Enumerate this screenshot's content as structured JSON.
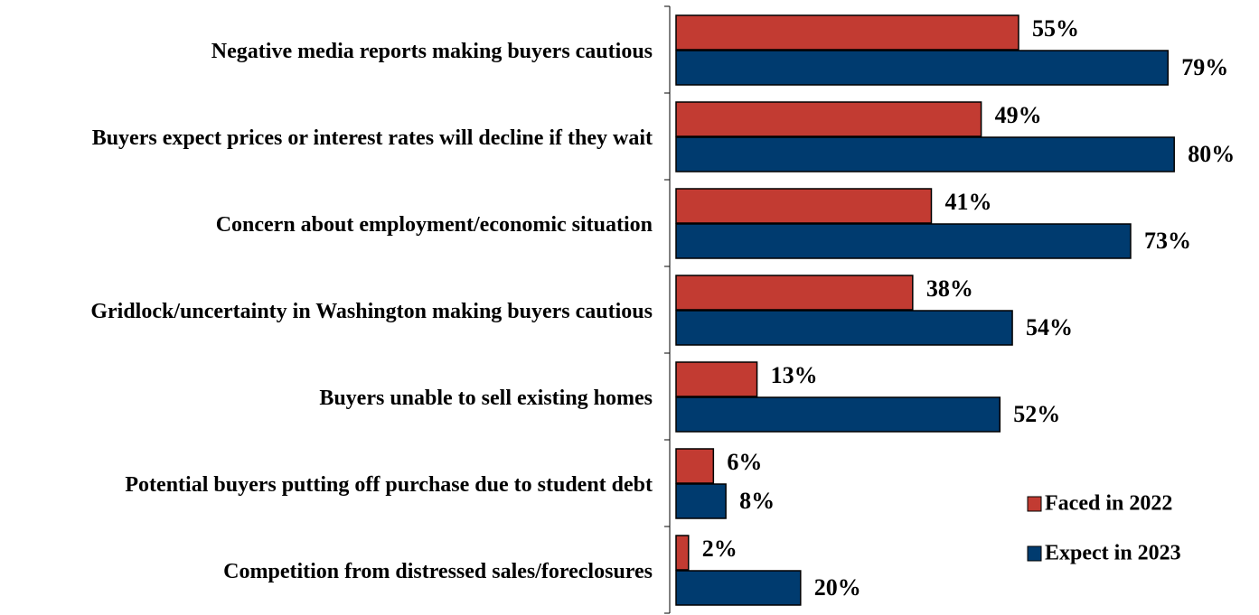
{
  "chart_data": {
    "type": "bar",
    "orientation": "horizontal",
    "categories": [
      "Negative media reports making buyers cautious",
      "Buyers expect prices or interest rates will decline if they wait",
      "Concern about employment/economic situation",
      "Gridlock/uncertainty in Washington making buyers cautious",
      "Buyers unable to sell existing homes",
      "Potential buyers putting off purchase due to student debt",
      "Competition from distressed sales/foreclosures"
    ],
    "series": [
      {
        "name": "Faced in 2022",
        "color": "#c23b32",
        "values": [
          55,
          49,
          41,
          38,
          13,
          6,
          2
        ],
        "value_labels": [
          "55%",
          "49%",
          "41%",
          "38%",
          "13%",
          "6%",
          "2%"
        ]
      },
      {
        "name": "Expect in 2023",
        "color": "#003b6f",
        "values": [
          79,
          80,
          73,
          54,
          52,
          8,
          20
        ],
        "value_labels": [
          "79%",
          "80%",
          "73%",
          "54%",
          "52%",
          "8%",
          "20%"
        ]
      }
    ],
    "xlim": [
      0,
      100
    ],
    "legend": "lower right"
  }
}
